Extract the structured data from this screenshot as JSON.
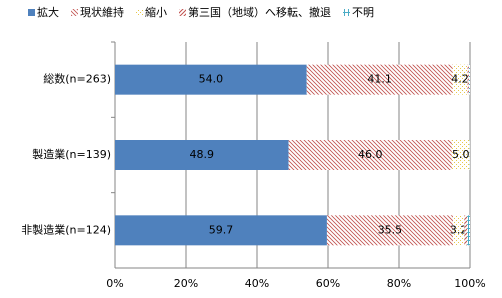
{
  "chart_data": {
    "type": "stacked-bar-horizontal",
    "categories": [
      "総数(n=263)",
      "製造業(n=139)",
      "非製造業(n=124)"
    ],
    "series": [
      {
        "name": "拡大",
        "color": "#4f81bd",
        "fill": "solid",
        "values": [
          54.0,
          48.9,
          59.7
        ],
        "value_labels": [
          "54.0",
          "48.9",
          "59.7"
        ]
      },
      {
        "name": "現状維持",
        "color": "#c0504d",
        "fill": "hatch-back",
        "values": [
          41.1,
          46.0,
          35.5
        ],
        "value_labels": [
          "41.1",
          "46.0",
          "35.5"
        ]
      },
      {
        "name": "縮小",
        "color": "#e6c84a",
        "fill": "dots",
        "values": [
          4.2,
          5.0,
          3.2
        ],
        "value_labels": [
          "4.2",
          "5.0",
          "3.2"
        ]
      },
      {
        "name": "第三国（地域）へ移転、撤退",
        "color": "#c0504d",
        "fill": "hatch-forward",
        "values": [
          0.4,
          0.0,
          0.8
        ]
      },
      {
        "name": "不明",
        "color": "#4bacc6",
        "fill": "grid",
        "values": [
          0.3,
          0.1,
          0.8
        ]
      }
    ],
    "xlim": [
      0,
      100
    ],
    "xticks": [
      {
        "value": 0,
        "label": "0%"
      },
      {
        "value": 20,
        "label": "20%"
      },
      {
        "value": 40,
        "label": "40%"
      },
      {
        "value": 60,
        "label": "60%"
      },
      {
        "value": 80,
        "label": "80%"
      },
      {
        "value": 100,
        "label": "100%"
      }
    ],
    "grid": true,
    "legend": "top"
  }
}
